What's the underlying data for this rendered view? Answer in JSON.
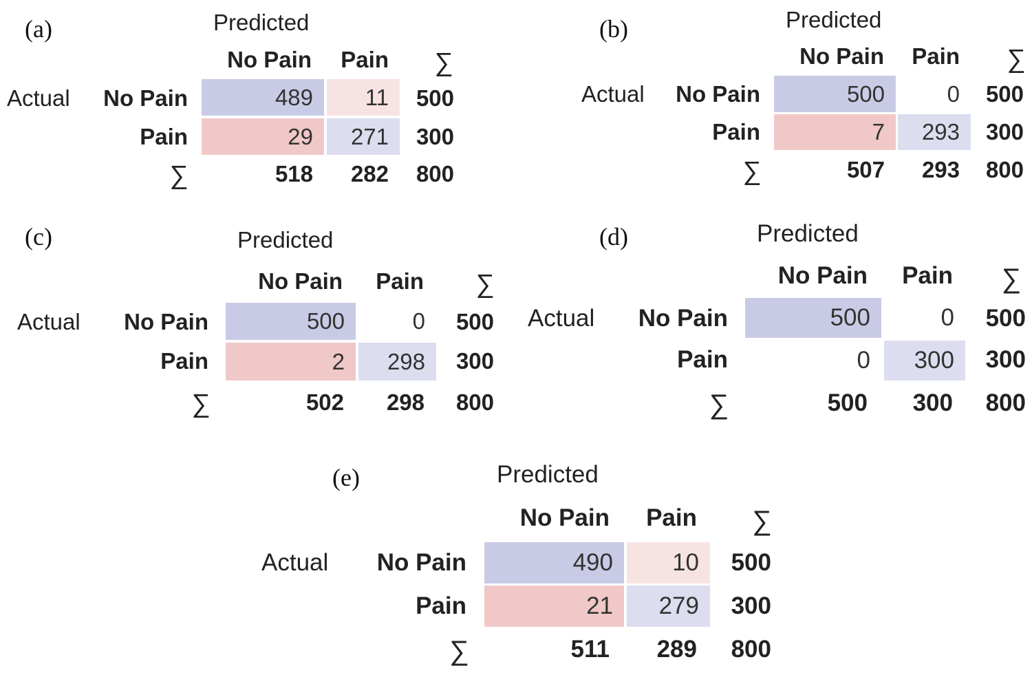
{
  "chart_data": [
    {
      "type": "table",
      "panel_label": "(a)",
      "header": "Predicted",
      "row_header": "Actual",
      "col_labels": [
        "No Pain",
        "Pain"
      ],
      "row_labels": [
        "No Pain",
        "Pain"
      ],
      "sum_symbol": "∑",
      "matrix": [
        [
          489,
          11
        ],
        [
          29,
          271
        ]
      ],
      "row_totals": [
        500,
        300
      ],
      "col_totals": [
        518,
        282
      ],
      "grand_total": 800
    },
    {
      "type": "table",
      "panel_label": "(b)",
      "header": "Predicted",
      "row_header": "Actual",
      "col_labels": [
        "No Pain",
        "Pain"
      ],
      "row_labels": [
        "No Pain",
        "Pain"
      ],
      "sum_symbol": "∑",
      "matrix": [
        [
          500,
          0
        ],
        [
          7,
          293
        ]
      ],
      "row_totals": [
        500,
        300
      ],
      "col_totals": [
        507,
        293
      ],
      "grand_total": 800
    },
    {
      "type": "table",
      "panel_label": "(c)",
      "header": "Predicted",
      "row_header": "Actual",
      "col_labels": [
        "No Pain",
        "Pain"
      ],
      "row_labels": [
        "No Pain",
        "Pain"
      ],
      "sum_symbol": "∑",
      "matrix": [
        [
          500,
          0
        ],
        [
          2,
          298
        ]
      ],
      "row_totals": [
        500,
        300
      ],
      "col_totals": [
        502,
        298
      ],
      "grand_total": 800
    },
    {
      "type": "table",
      "panel_label": "(d)",
      "header": "Predicted",
      "row_header": "Actual",
      "col_labels": [
        "No Pain",
        "Pain"
      ],
      "row_labels": [
        "No Pain",
        "Pain"
      ],
      "sum_symbol": "∑",
      "matrix": [
        [
          500,
          0
        ],
        [
          0,
          300
        ]
      ],
      "row_totals": [
        500,
        300
      ],
      "col_totals": [
        500,
        300
      ],
      "grand_total": 800
    },
    {
      "type": "table",
      "panel_label": "(e)",
      "header": "Predicted",
      "row_header": "Actual",
      "col_labels": [
        "No Pain",
        "Pain"
      ],
      "row_labels": [
        "No Pain",
        "Pain"
      ],
      "sum_symbol": "∑",
      "matrix": [
        [
          490,
          10
        ],
        [
          21,
          279
        ]
      ],
      "row_totals": [
        500,
        300
      ],
      "col_totals": [
        511,
        289
      ],
      "grand_total": 800
    }
  ],
  "colors": {
    "true_positive_no_pain": "#c9cbe6",
    "true_pain": "#dcdeef",
    "false_no_pain": "#f0c8c8",
    "false_pain": "#f8e3e3"
  }
}
